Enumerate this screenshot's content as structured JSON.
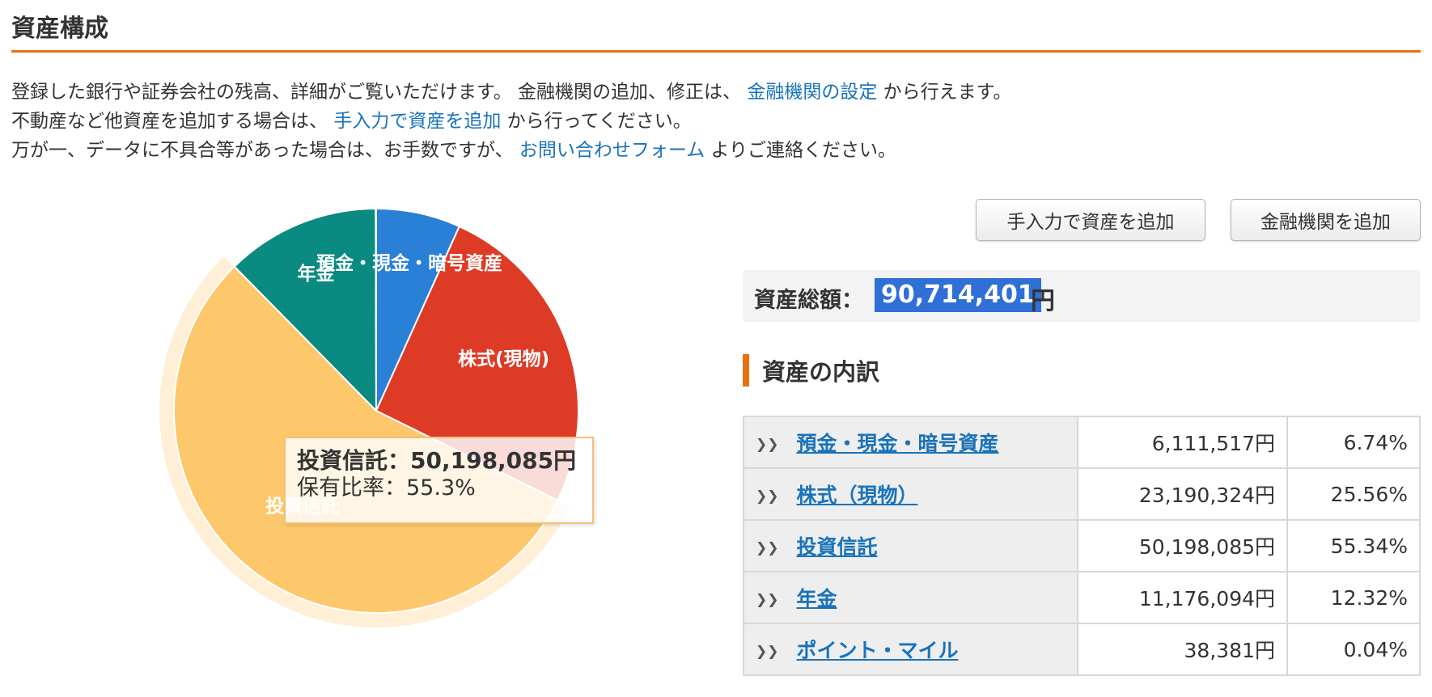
{
  "page": {
    "title": "資産構成"
  },
  "intro": {
    "line1_text": "登録した銀行や証券会社の残高、詳細がご覧いただけます。 金融機関の追加、修正は、",
    "line1_link": "金融機関の設定",
    "line1_suffix": "から行えます。",
    "line2_text": "不動産など他資産を追加する場合は、",
    "line2_link": "手入力で資産を追加",
    "line2_suffix": "から行ってください。",
    "line3_text": "万が一、データに不具合等があった場合は、お手数ですが、",
    "line3_link": "お問い合わせフォーム",
    "line3_suffix": "よりご連絡ください。"
  },
  "buttons": {
    "manual_add": "手入力で資産を追加",
    "institution_add": "金融機関を追加"
  },
  "total": {
    "label": "資産総額：",
    "value": "90,714,401",
    "unit": "円"
  },
  "breakdown": {
    "title": "資産の内訳",
    "rows": [
      {
        "name": "預金・現金・暗号資産",
        "amount": "6,111,517円",
        "percent": "6.74%"
      },
      {
        "name": "株式（現物）",
        "amount": "23,190,324円",
        "percent": "25.56%"
      },
      {
        "name": "投資信託",
        "amount": "50,198,085円",
        "percent": "55.34%"
      },
      {
        "name": "年金",
        "amount": "11,176,094円",
        "percent": "12.32%"
      },
      {
        "name": "ポイント・マイル",
        "amount": "38,381円",
        "percent": "0.04%"
      }
    ]
  },
  "chart_data": {
    "type": "pie",
    "categories": [
      "預金・現金・暗号資産",
      "株式(現物)",
      "投資信託",
      "年金",
      "ポイント・マイル"
    ],
    "values": [
      6.74,
      25.56,
      55.34,
      12.32,
      0.04
    ],
    "slice_labels": [
      "預金・現金・暗号資産",
      "株式(現物)",
      "投資信託",
      "年金",
      ""
    ],
    "colors": [
      "#2a7fd6",
      "#de3b26",
      "#fdc76b",
      "#0a8a80",
      "#8a8a8a"
    ],
    "highlighted": "投資信託"
  },
  "tooltip": {
    "line1": "投資信託：50,198,085円",
    "line2": "保有比率：55.3%"
  }
}
